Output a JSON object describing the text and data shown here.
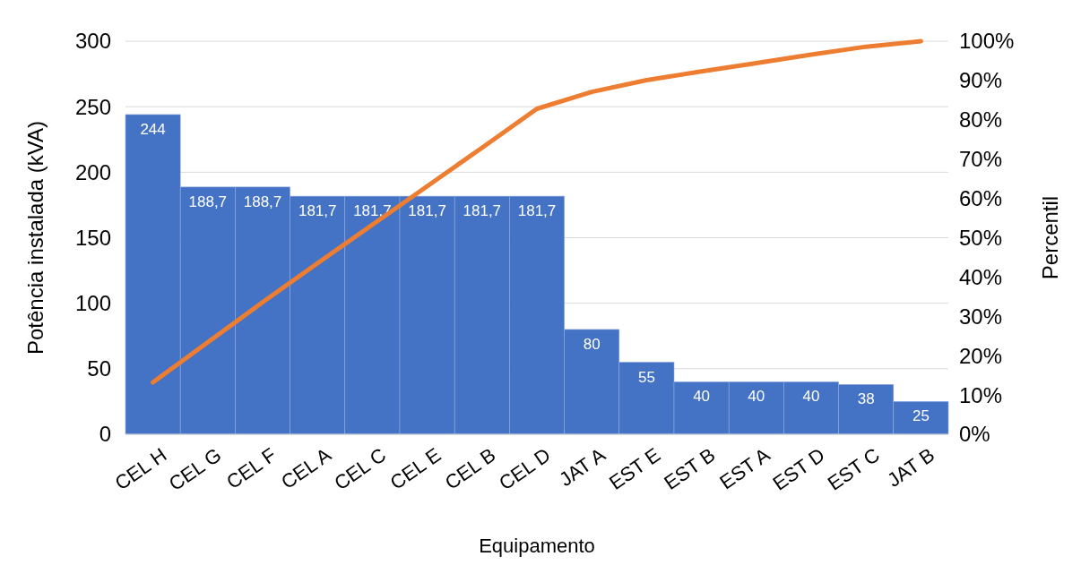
{
  "chart_data": {
    "type": "bar",
    "xlabel": "Equipamento",
    "ylabel": "Potência instalada (kVA)",
    "y2label": "Percentil",
    "categories": [
      "CEL H",
      "CEL G",
      "CEL F",
      "CEL A",
      "CEL C",
      "CEL E",
      "CEL B",
      "CEL D",
      "JAT A",
      "EST E",
      "EST B",
      "EST A",
      "EST D",
      "EST C",
      "JAT B"
    ],
    "series": [
      {
        "color": "#4472c4",
        "values": [
          244,
          188.7,
          188.7,
          181.7,
          181.7,
          181.7,
          181.7,
          181.7,
          80,
          55,
          40,
          40,
          40,
          38,
          25
        ],
        "value_labels": [
          "244",
          "188,7",
          "188,7",
          "181,7",
          "181,7",
          "181,7",
          "181,7",
          "181,7",
          "80",
          "55",
          "40",
          "40",
          "40",
          "38",
          "25"
        ]
      },
      {
        "type": "line",
        "axis": "y2",
        "color": "#ed7d31",
        "values": [
          13.2,
          23.4,
          33.6,
          43.5,
          53.3,
          63.1,
          72.9,
          82.8,
          87.1,
          90.1,
          92.3,
          94.4,
          96.6,
          98.6,
          100
        ]
      }
    ],
    "ylim": [
      0,
      300
    ],
    "yticks": [
      0,
      50,
      100,
      150,
      200,
      250,
      300
    ],
    "y2lim": [
      0,
      100
    ],
    "y2ticks": [
      {
        "value": 0,
        "label": "0%"
      },
      {
        "value": 10,
        "label": "10%"
      },
      {
        "value": 20,
        "label": "20%"
      },
      {
        "value": 30,
        "label": "30%"
      },
      {
        "value": 40,
        "label": "40%"
      },
      {
        "value": 50,
        "label": "50%"
      },
      {
        "value": 60,
        "label": "60%"
      },
      {
        "value": 70,
        "label": "70%"
      },
      {
        "value": 80,
        "label": "80%"
      },
      {
        "value": 90,
        "label": "90%"
      },
      {
        "value": 100,
        "label": "100%"
      }
    ],
    "grid": "y"
  }
}
